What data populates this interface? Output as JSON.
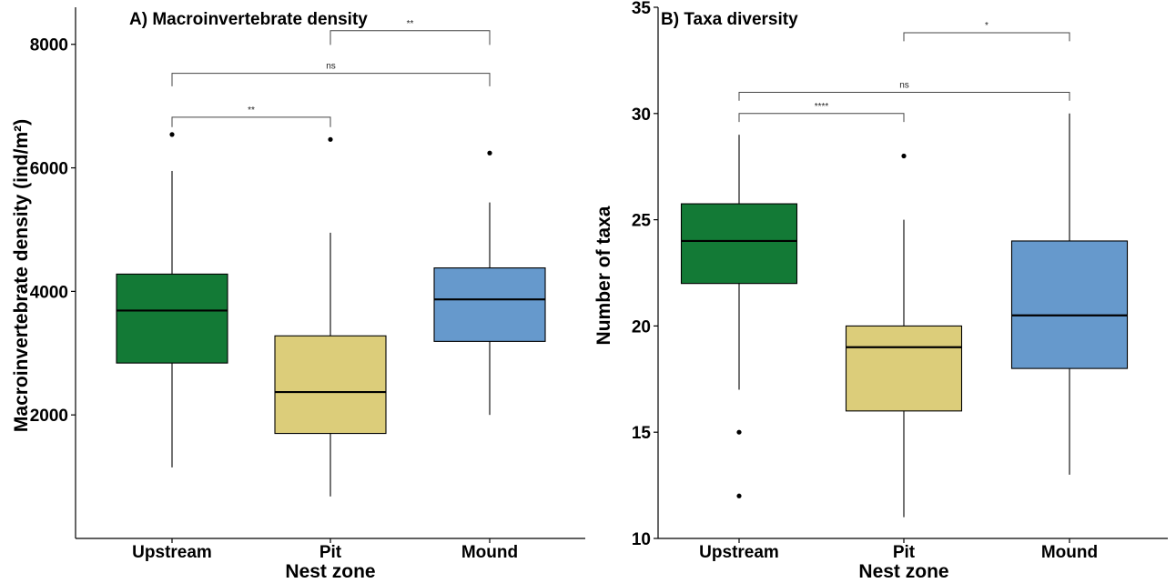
{
  "chart_data": [
    {
      "type": "box",
      "title": "A) Macroinvertebrate density",
      "xlabel": "Nest zone",
      "ylabel": "Macroinvertebrate density (ind/m²)",
      "ylim": [
        0,
        8600
      ],
      "yticks": [
        2000,
        4000,
        6000,
        8000
      ],
      "ytick_labels": [
        "2000",
        "4000",
        "6000",
        "8000"
      ],
      "categories": [
        "Upstream",
        "Pit",
        "Mound"
      ],
      "colors": [
        "#137a36",
        "#dccd7a",
        "#6699cc"
      ],
      "boxes": [
        {
          "min": 1150,
          "q1": 2840,
          "median": 3690,
          "q3": 4280,
          "max": 5950,
          "outliers": [
            6540
          ]
        },
        {
          "min": 680,
          "q1": 1700,
          "median": 2370,
          "q3": 3280,
          "max": 4950,
          "outliers": [
            6460
          ]
        },
        {
          "min": 2000,
          "q1": 3190,
          "median": 3870,
          "q3": 4380,
          "max": 5440,
          "outliers": [
            6240
          ]
        }
      ],
      "comparisons": [
        {
          "from": 0,
          "to": 1,
          "label": "**",
          "y": 6820,
          "tail": 6660
        },
        {
          "from": 0,
          "to": 2,
          "label": "ns",
          "y": 7530,
          "tail": 7320
        },
        {
          "from": 1,
          "to": 2,
          "label": "**",
          "y": 8220,
          "tail": 7990
        }
      ]
    },
    {
      "type": "box",
      "title": "B) Taxa diversity",
      "xlabel": "Nest zone",
      "ylabel": "Number of taxa",
      "ylim": [
        10,
        35
      ],
      "yticks": [
        10,
        15,
        20,
        25,
        30,
        35
      ],
      "ytick_labels": [
        "10",
        "15",
        "20",
        "25",
        "30",
        "35"
      ],
      "categories": [
        "Upstream",
        "Pit",
        "Mound"
      ],
      "colors": [
        "#137a36",
        "#dccd7a",
        "#6699cc"
      ],
      "boxes": [
        {
          "min": 17,
          "q1": 22,
          "median": 24,
          "q3": 25.75,
          "max": 29,
          "outliers": [
            15,
            12
          ]
        },
        {
          "min": 11,
          "q1": 16,
          "median": 19,
          "q3": 20,
          "max": 25,
          "outliers": [
            28
          ]
        },
        {
          "min": 13,
          "q1": 18,
          "median": 20.5,
          "q3": 24,
          "max": 30,
          "outliers": []
        }
      ],
      "comparisons": [
        {
          "from": 0,
          "to": 1,
          "label": "****",
          "y": 30.0,
          "tail": 29.6
        },
        {
          "from": 0,
          "to": 2,
          "label": "ns",
          "y": 31.0,
          "tail": 30.6
        },
        {
          "from": 1,
          "to": 2,
          "label": "*",
          "y": 33.8,
          "tail": 33.4
        }
      ]
    }
  ]
}
